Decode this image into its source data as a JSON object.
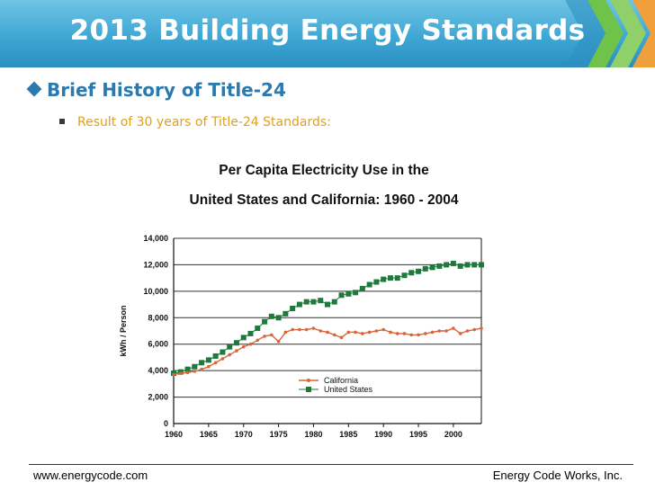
{
  "slide": {
    "title": "2013 Building Energy Standards",
    "heading": "Brief History of Title-24",
    "sub_bullet": "Result of 30 years of Title-24 Standards:",
    "footer_left": "www.energycode.com",
    "footer_right": "Energy Code Works, Inc."
  },
  "colors": {
    "title_bar": "#3fa7d4",
    "heading": "#2a7ab0",
    "sub_bullet": "#e0a020",
    "california": "#d9653a",
    "united_states": "#1e7a3c"
  },
  "chart_data": {
    "type": "line",
    "title": [
      "Per Capita Electricity Use in the",
      "United States and California: 1960 - 2004"
    ],
    "ylabel": "kWh / Person",
    "xlabel": "",
    "xlim": [
      1960,
      2004
    ],
    "ylim": [
      0,
      14000
    ],
    "xticks": [
      1960,
      1965,
      1970,
      1975,
      1980,
      1985,
      1990,
      1995,
      2000
    ],
    "yticks": [
      0,
      2000,
      4000,
      6000,
      8000,
      10000,
      12000,
      14000
    ],
    "ytick_labels": [
      "0",
      "2,000",
      "4,000",
      "6,000",
      "8,000",
      "10,000",
      "12,000",
      "14,000"
    ],
    "grid": "horizontal",
    "legend_position": "lower-right",
    "series": [
      {
        "name": "California",
        "marker": "dot",
        "x": [
          1960,
          1961,
          1962,
          1963,
          1964,
          1965,
          1966,
          1967,
          1968,
          1969,
          1970,
          1971,
          1972,
          1973,
          1974,
          1975,
          1976,
          1977,
          1978,
          1979,
          1980,
          1981,
          1982,
          1983,
          1984,
          1985,
          1986,
          1987,
          1988,
          1989,
          1990,
          1991,
          1992,
          1993,
          1994,
          1995,
          1996,
          1997,
          1998,
          1999,
          2000,
          2001,
          2002,
          2003,
          2004
        ],
        "values": [
          3700,
          3800,
          3850,
          3950,
          4100,
          4300,
          4600,
          4900,
          5200,
          5500,
          5800,
          6000,
          6300,
          6600,
          6700,
          6200,
          6900,
          7100,
          7100,
          7100,
          7200,
          7000,
          6900,
          6700,
          6500,
          6900,
          6900,
          6800,
          6900,
          7000,
          7100,
          6900,
          6800,
          6800,
          6700,
          6700,
          6800,
          6900,
          7000,
          7000,
          7200,
          6800,
          7000,
          7100,
          7200
        ]
      },
      {
        "name": "United States",
        "marker": "square",
        "x": [
          1960,
          1961,
          1962,
          1963,
          1964,
          1965,
          1966,
          1967,
          1968,
          1969,
          1970,
          1971,
          1972,
          1973,
          1974,
          1975,
          1976,
          1977,
          1978,
          1979,
          1980,
          1981,
          1982,
          1983,
          1984,
          1985,
          1986,
          1987,
          1988,
          1989,
          1990,
          1991,
          1992,
          1993,
          1994,
          1995,
          1996,
          1997,
          1998,
          1999,
          2000,
          2001,
          2002,
          2003,
          2004
        ],
        "values": [
          3800,
          3900,
          4100,
          4300,
          4600,
          4800,
          5100,
          5400,
          5800,
          6100,
          6500,
          6800,
          7200,
          7700,
          8100,
          8000,
          8300,
          8700,
          9000,
          9200,
          9200,
          9300,
          9000,
          9200,
          9700,
          9800,
          9900,
          10200,
          10500,
          10700,
          10900,
          11000,
          11000,
          11200,
          11400,
          11500,
          11700,
          11800,
          11900,
          12000,
          12100,
          11900,
          12000,
          12000,
          12000
        ]
      }
    ]
  }
}
